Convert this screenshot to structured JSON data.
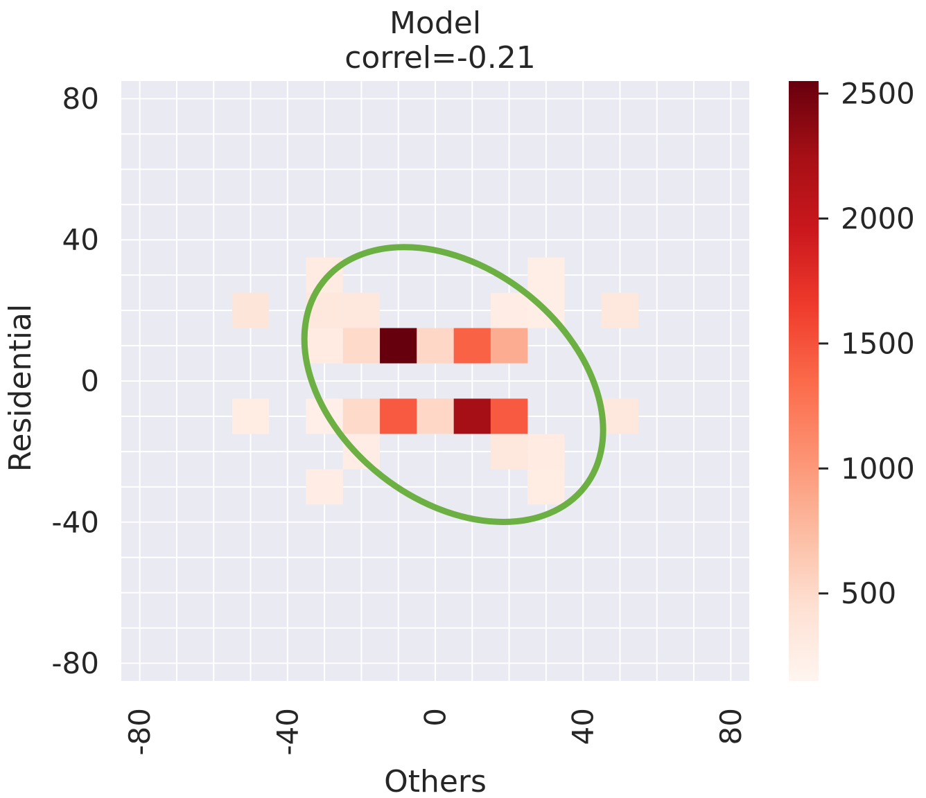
{
  "chart_data": {
    "type": "heatmap",
    "title": "Model",
    "subtitle": "correl=-0.21",
    "xlabel": "Others",
    "ylabel": "Residential",
    "xlim": [
      -85,
      85
    ],
    "ylim": [
      -85,
      85
    ],
    "x_ticks": [
      -80,
      -40,
      0,
      40,
      80
    ],
    "y_ticks": [
      80,
      40,
      0,
      -40,
      -80
    ],
    "bin_size": 10,
    "grid": true,
    "colormap": "Reds",
    "colorbar": {
      "min": 150,
      "max": 2550,
      "ticks": [
        500,
        1000,
        1500,
        2000,
        2500
      ]
    },
    "cells": [
      {
        "x": -50,
        "y": 20,
        "value": 380
      },
      {
        "x": -30,
        "y": 30,
        "value": 300
      },
      {
        "x": -30,
        "y": 20,
        "value": 350
      },
      {
        "x": -20,
        "y": 20,
        "value": 330
      },
      {
        "x": 20,
        "y": 20,
        "value": 260
      },
      {
        "x": 30,
        "y": 30,
        "value": 250
      },
      {
        "x": 30,
        "y": 20,
        "value": 250
      },
      {
        "x": 50,
        "y": 20,
        "value": 330
      },
      {
        "x": -30,
        "y": 10,
        "value": 300
      },
      {
        "x": -20,
        "y": 10,
        "value": 500
      },
      {
        "x": -10,
        "y": 10,
        "value": 2550
      },
      {
        "x": 0,
        "y": 10,
        "value": 520
      },
      {
        "x": 10,
        "y": 10,
        "value": 1400
      },
      {
        "x": 20,
        "y": 10,
        "value": 850
      },
      {
        "x": -50,
        "y": -10,
        "value": 280
      },
      {
        "x": -30,
        "y": -10,
        "value": 230
      },
      {
        "x": -20,
        "y": -10,
        "value": 500
      },
      {
        "x": -10,
        "y": -10,
        "value": 1450
      },
      {
        "x": 0,
        "y": -10,
        "value": 520
      },
      {
        "x": 10,
        "y": -10,
        "value": 2250
      },
      {
        "x": 20,
        "y": -10,
        "value": 1450
      },
      {
        "x": 50,
        "y": -10,
        "value": 330
      },
      {
        "x": -20,
        "y": -20,
        "value": 260
      },
      {
        "x": 20,
        "y": -20,
        "value": 330
      },
      {
        "x": 30,
        "y": -20,
        "value": 300
      },
      {
        "x": -30,
        "y": -30,
        "value": 260
      },
      {
        "x": 30,
        "y": -30,
        "value": 280
      }
    ],
    "ellipse": {
      "center": [
        5,
        -1
      ],
      "semi_axes": [
        45,
        33
      ],
      "angle_deg": -38,
      "color": "#6cb043"
    },
    "colors": {
      "plot_background": "#eaeaf2",
      "gridline": "#ffffff",
      "text": "#262626"
    }
  }
}
